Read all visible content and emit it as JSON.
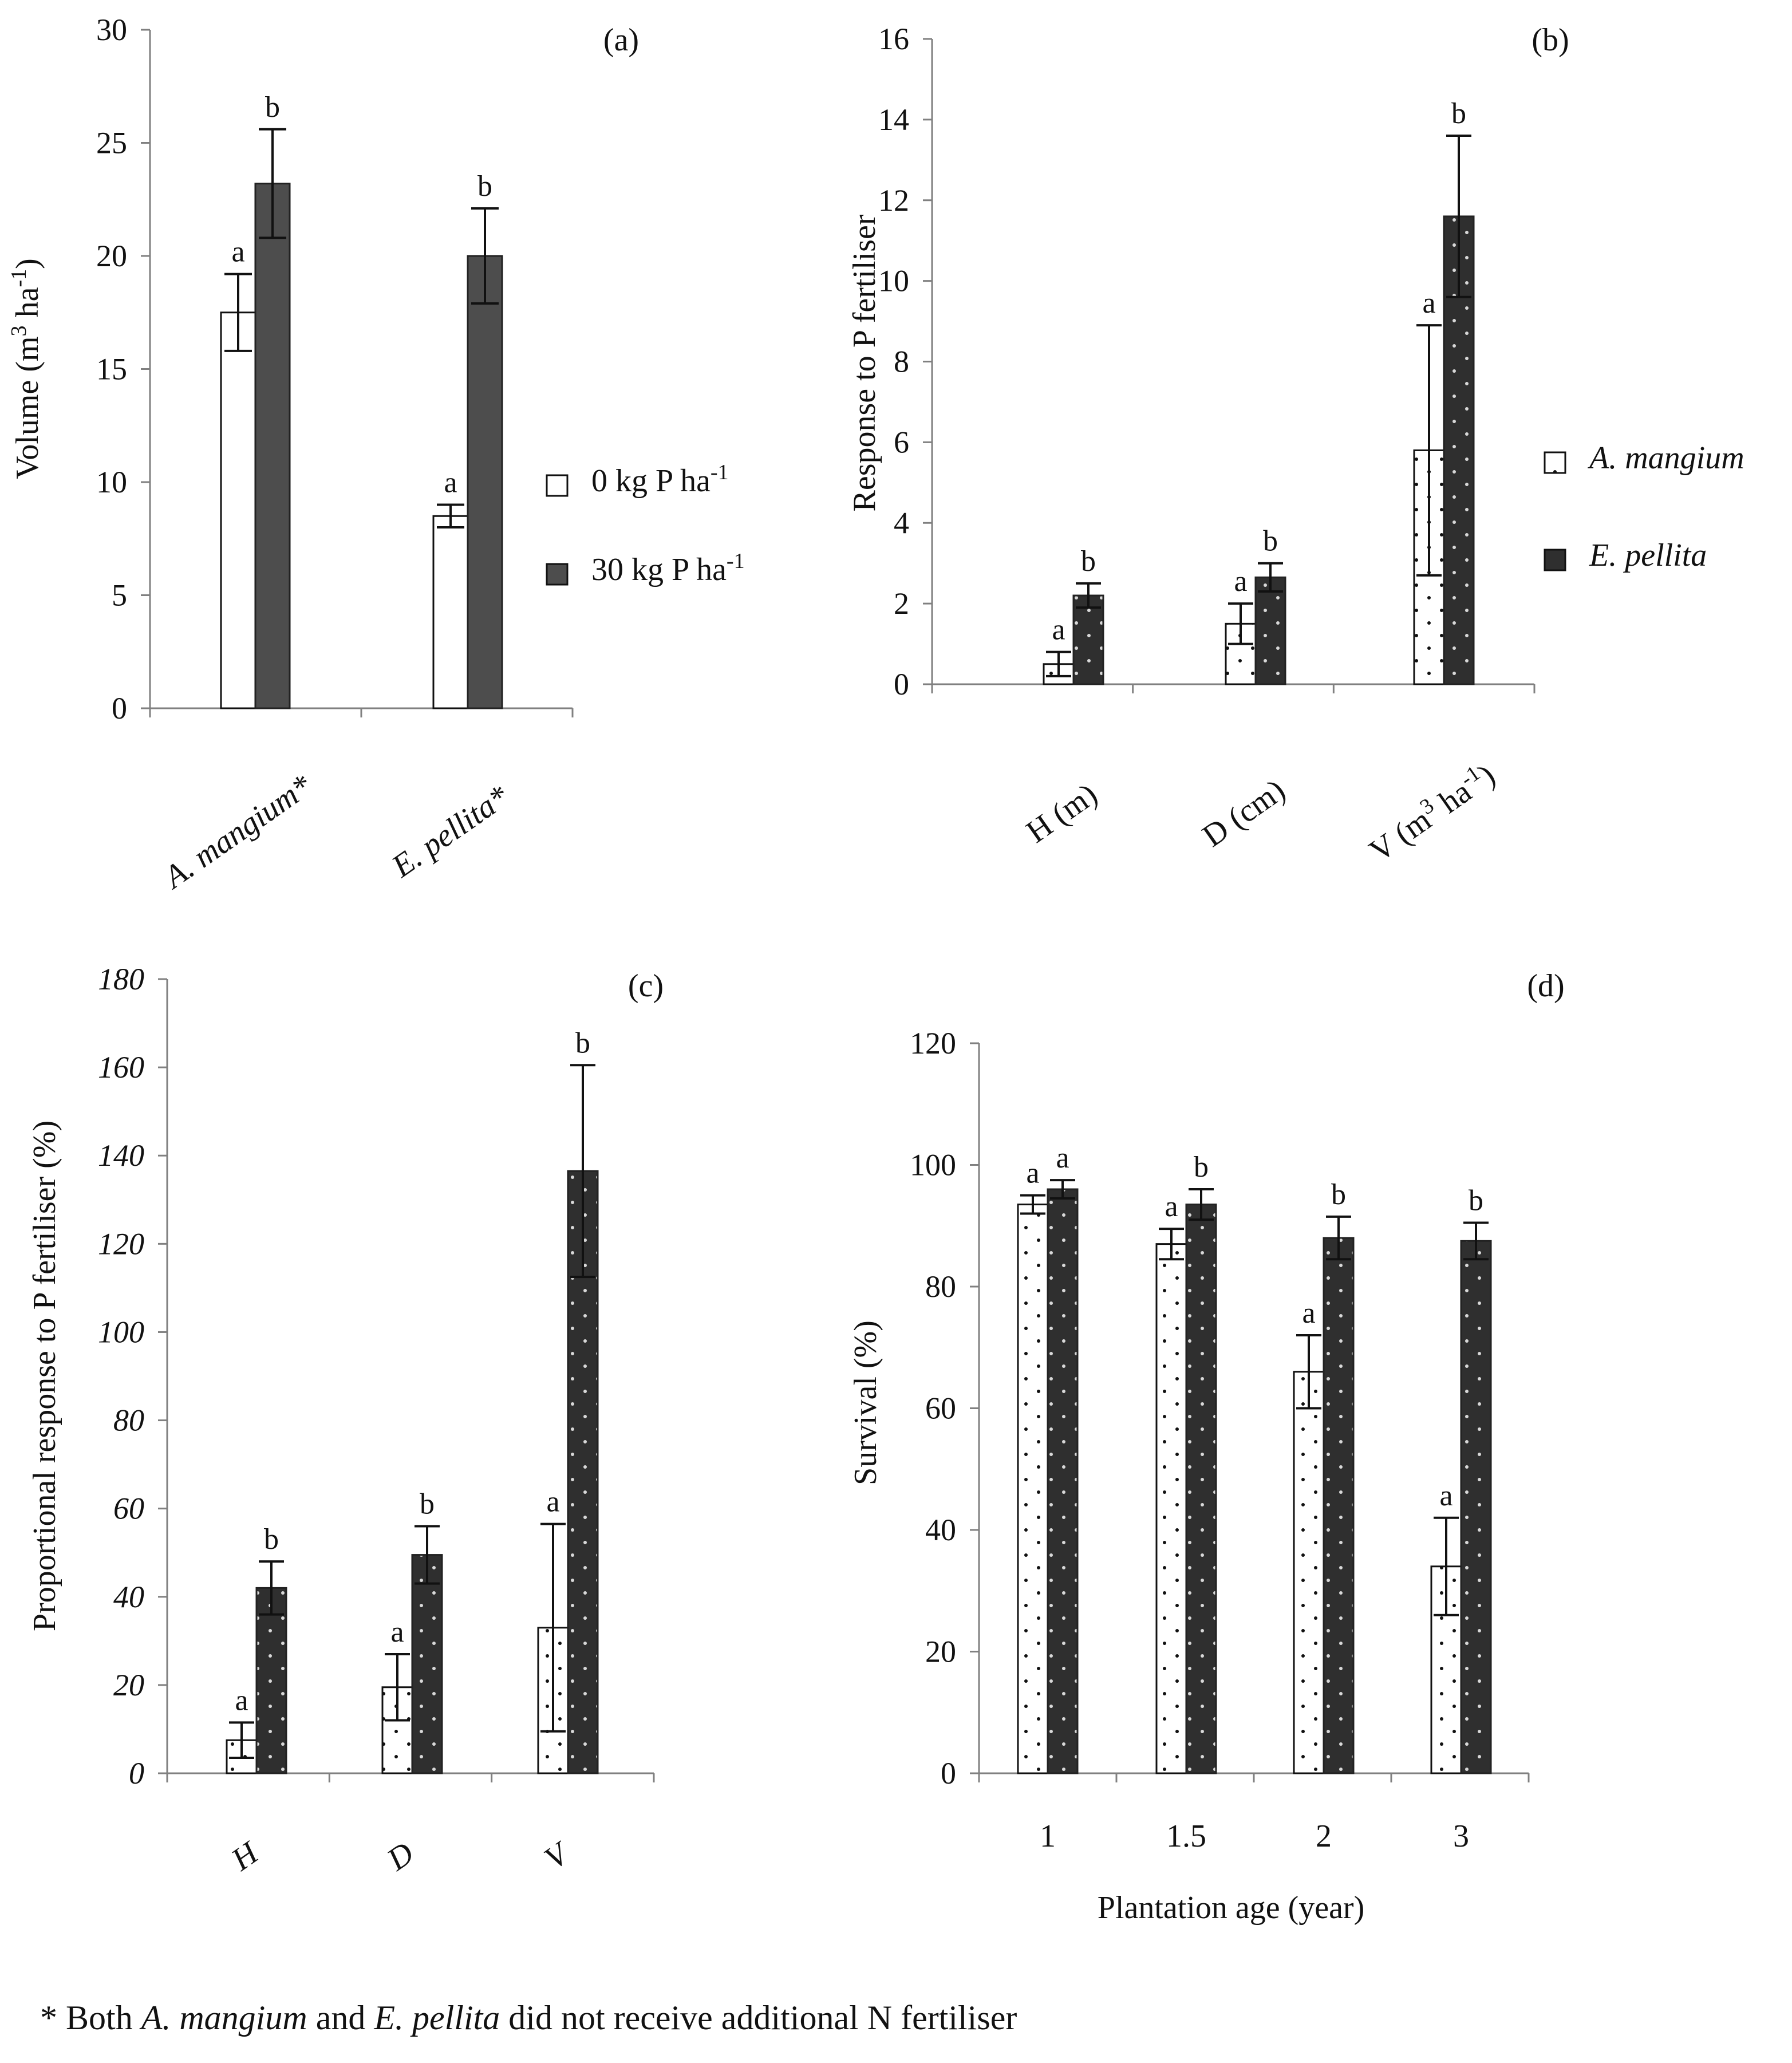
{
  "colors": {
    "bar_open": "#ffffff",
    "bar_filled_a": "#4d4d4d",
    "bar_filled_dark": "#2f2f2f",
    "axis": "#808080",
    "stroke": "#111111",
    "dot": "#d8d8d8"
  },
  "chart_data": [
    {
      "panel": "(a)",
      "type": "bar",
      "categories": [
        "A. mangium*",
        "E. pellita*"
      ],
      "ylabel": "Volume (m³ ha⁻¹)",
      "ylim": [
        0,
        30
      ],
      "yticks": [
        0,
        5,
        10,
        15,
        20,
        25,
        30
      ],
      "legend": "right",
      "series": [
        {
          "name": "0 kg P ha⁻¹",
          "values": [
            17.5,
            8.5
          ],
          "err": [
            1.7,
            0.5
          ],
          "sig": [
            "a",
            "a"
          ]
        },
        {
          "name": "30 kg P ha⁻¹",
          "values": [
            23.2,
            20.0
          ],
          "err": [
            2.4,
            2.1
          ],
          "sig": [
            "b",
            "b"
          ]
        }
      ]
    },
    {
      "panel": "(b)",
      "type": "bar",
      "categories": [
        "H (m)",
        "D (cm)",
        "V (m³ ha⁻¹)"
      ],
      "ylabel": "Response to P fertiliser",
      "ylim": [
        0,
        16
      ],
      "yticks": [
        0,
        2,
        4,
        6,
        8,
        10,
        12,
        14,
        16
      ],
      "legend": "right",
      "series": [
        {
          "name": "A. mangium",
          "values": [
            0.5,
            1.5,
            5.8
          ],
          "err": [
            0.3,
            0.5,
            3.1
          ],
          "sig": [
            "a",
            "a",
            "a"
          ]
        },
        {
          "name": "E. pellita",
          "values": [
            2.2,
            2.65,
            11.6
          ],
          "err": [
            0.3,
            0.35,
            2.0
          ],
          "sig": [
            "b",
            "b",
            "b"
          ]
        }
      ]
    },
    {
      "panel": "(c)",
      "type": "bar",
      "categories": [
        "H",
        "D",
        "V"
      ],
      "ylabel": "Proportional response to P fertiliser (%)",
      "ylim": [
        0,
        180
      ],
      "yticks": [
        0,
        20,
        40,
        60,
        80,
        100,
        120,
        140,
        160,
        180
      ],
      "series": [
        {
          "name": "A. mangium",
          "values": [
            7.5,
            19.5,
            33
          ],
          "err": [
            4,
            7.5,
            23.5
          ],
          "sig": [
            "a",
            "a",
            "a"
          ]
        },
        {
          "name": "E. pellita",
          "values": [
            42,
            49.5,
            136.5
          ],
          "err": [
            6,
            6.5,
            24
          ],
          "sig": [
            "b",
            "b",
            "b"
          ]
        }
      ]
    },
    {
      "panel": "(d)",
      "type": "bar",
      "categories": [
        "1",
        "1.5",
        "2",
        "3"
      ],
      "xlabel": "Plantation age (year)",
      "ylabel": "Survival (%)",
      "ylim": [
        0,
        120
      ],
      "yticks": [
        0,
        20,
        40,
        60,
        80,
        100,
        120
      ],
      "series": [
        {
          "name": "A. mangium",
          "values": [
            93.5,
            87,
            66,
            34
          ],
          "err": [
            1.5,
            2.5,
            6,
            8
          ],
          "sig": [
            "a",
            "a",
            "a",
            "a"
          ]
        },
        {
          "name": "E. pellita",
          "values": [
            96,
            93.5,
            88,
            87.5
          ],
          "err": [
            1.5,
            2.5,
            3.5,
            3
          ],
          "sig": [
            "a",
            "b",
            "b",
            "b"
          ]
        }
      ]
    }
  ],
  "footnote": {
    "prefix": "* Both ",
    "species1": "A. mangium",
    "middle": " and ",
    "species2": "E. pellita",
    "suffix": " did not receive additional N fertiliser"
  }
}
